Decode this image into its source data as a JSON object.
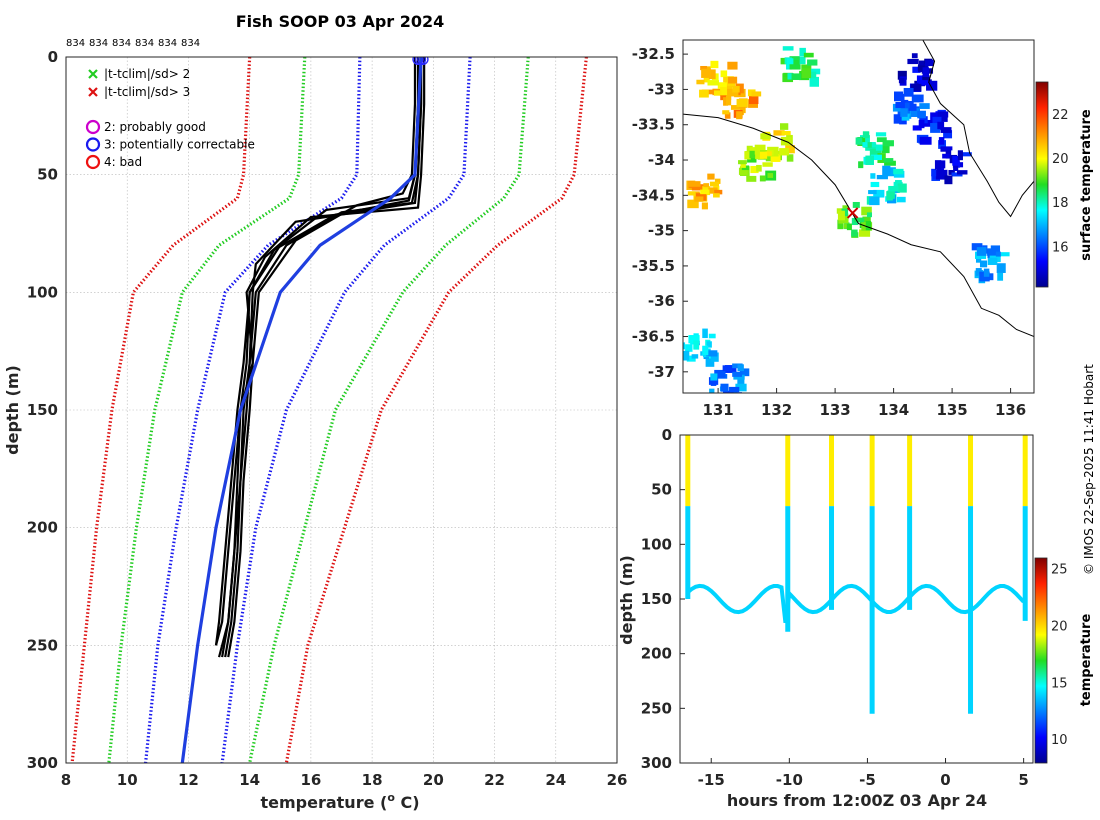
{
  "title": "Fish SOOP 03 Apr 2024",
  "copyright": "© IMOS 22-Sep-2025 11:41 Hobart",
  "colors": {
    "clim_2sd": "#22cc22",
    "clim_3sd": "#dd1111",
    "clim_1sd": "#1a1aee",
    "mean": "#1f3fe0",
    "casts": "#000000",
    "marker": "#cc00cc"
  },
  "chart_data": [
    {
      "id": "profile",
      "type": "line",
      "title": "Fish SOOP 03 Apr 2024",
      "xlabel": "temperature (",
      "xlabel_sup": "o",
      "xlabel_end": " C)",
      "ylabel": "depth (m)",
      "xlim": [
        8,
        26
      ],
      "ylim": [
        0,
        300
      ],
      "xticks": [
        8,
        10,
        12,
        14,
        16,
        18,
        20,
        22,
        24,
        26
      ],
      "yticks": [
        0,
        50,
        100,
        150,
        200,
        250,
        300
      ],
      "cast_ids": [
        "834",
        "834",
        "834",
        "834",
        "834",
        "834"
      ],
      "legend": [
        {
          "label": "|t-tclim|/sd> 2",
          "symbol": "x",
          "color": "#22cc22"
        },
        {
          "label": "|t-tclim|/sd> 3",
          "symbol": "x",
          "color": "#dd1111"
        },
        {
          "label": "2: probably good",
          "symbol": "o",
          "color": "#cc00cc"
        },
        {
          "label": "3: potentially correctable",
          "symbol": "o",
          "color": "#1a1aee"
        },
        {
          "label": "4: bad",
          "symbol": "o",
          "color": "#ee1111"
        }
      ],
      "climatology": {
        "depth": [
          0,
          50,
          60,
          80,
          100,
          150,
          200,
          250,
          300
        ],
        "mean": [
          19.6,
          19.4,
          18.6,
          16.3,
          15.0,
          13.7,
          12.9,
          12.3,
          11.8
        ],
        "plus1": [
          21.2,
          21.0,
          20.5,
          18.4,
          17.1,
          15.2,
          14.2,
          13.6,
          13.1
        ],
        "minus1": [
          17.6,
          17.5,
          17.0,
          14.6,
          13.2,
          12.3,
          11.6,
          11.0,
          10.6
        ],
        "plus2": [
          23.1,
          22.8,
          22.3,
          20.4,
          19.0,
          16.8,
          15.8,
          14.8,
          14.0
        ],
        "minus2": [
          15.8,
          15.6,
          15.3,
          13.0,
          11.8,
          10.9,
          10.3,
          9.8,
          9.4
        ],
        "plus3": [
          25.0,
          24.6,
          24.2,
          22.1,
          20.5,
          18.3,
          17.1,
          15.9,
          15.2
        ],
        "minus3": [
          14.0,
          13.8,
          13.6,
          11.5,
          10.2,
          9.5,
          9.0,
          8.6,
          8.2
        ]
      },
      "casts": [
        {
          "depth": [
            0,
            20,
            50,
            62,
            66,
            80,
            100,
            130,
            150,
            180,
            210,
            240,
            255
          ],
          "temp": [
            19.6,
            19.6,
            19.5,
            19.3,
            17.0,
            15.2,
            14.2,
            14.0,
            13.8,
            13.7,
            13.6,
            13.4,
            13.2
          ]
        },
        {
          "depth": [
            0,
            20,
            50,
            60,
            65,
            80,
            100,
            130,
            150,
            180,
            210,
            240,
            255
          ],
          "temp": [
            19.5,
            19.5,
            19.4,
            19.2,
            16.5,
            15.0,
            14.0,
            13.9,
            13.7,
            13.6,
            13.5,
            13.3,
            13.1
          ]
        },
        {
          "depth": [
            0,
            20,
            50,
            64,
            68,
            85,
            100,
            130,
            150,
            180,
            210,
            240,
            255
          ],
          "temp": [
            19.7,
            19.7,
            19.6,
            19.5,
            16.0,
            14.5,
            13.9,
            14.1,
            14.0,
            13.8,
            13.7,
            13.5,
            13.3
          ]
        },
        {
          "depth": [
            0,
            20,
            50,
            58,
            63,
            78,
            100,
            130,
            150,
            180,
            210,
            240,
            250
          ],
          "temp": [
            19.4,
            19.4,
            19.3,
            19.0,
            17.5,
            15.5,
            14.3,
            14.1,
            13.7,
            13.5,
            13.3,
            13.1,
            12.9
          ]
        },
        {
          "depth": [
            0,
            20,
            50,
            62,
            70,
            88,
            100,
            130,
            150,
            180,
            210,
            240,
            255
          ],
          "temp": [
            19.6,
            19.6,
            19.5,
            19.4,
            15.5,
            14.2,
            14.1,
            14.0,
            13.9,
            13.7,
            13.5,
            13.3,
            13.0
          ]
        },
        {
          "depth": [
            0,
            20,
            50,
            61,
            67,
            82,
            100,
            130,
            150,
            180,
            210,
            240,
            250
          ],
          "temp": [
            19.5,
            19.5,
            19.4,
            19.2,
            16.8,
            14.8,
            14.0,
            13.8,
            13.6,
            13.4,
            13.2,
            13.0,
            12.9
          ]
        }
      ]
    },
    {
      "id": "map",
      "type": "heatmap",
      "xlim": [
        130.4,
        136.4
      ],
      "ylim": [
        -37.3,
        -32.3
      ],
      "xticks": [
        131,
        132,
        133,
        134,
        135,
        136
      ],
      "yticks": [
        -32.5,
        -33,
        -33.5,
        -34,
        -34.5,
        -35,
        -35.5,
        -36,
        -36.5,
        -37
      ],
      "colorbar_label": "surface temperature",
      "clim": [
        14.2,
        23.5
      ],
      "cticks": [
        16,
        18,
        20,
        22
      ],
      "vessel_position": {
        "lon": 133.3,
        "lat": -34.75
      },
      "sst_patches": [
        {
          "lon": 130.9,
          "lat": -32.8,
          "val": 20.5
        },
        {
          "lon": 131.3,
          "lat": -33.1,
          "val": 21.0
        },
        {
          "lon": 130.7,
          "lat": -34.4,
          "val": 20.8
        },
        {
          "lon": 131.6,
          "lat": -34.0,
          "val": 19.5
        },
        {
          "lon": 131.9,
          "lat": -33.7,
          "val": 20.0
        },
        {
          "lon": 132.3,
          "lat": -32.6,
          "val": 18.5
        },
        {
          "lon": 133.6,
          "lat": -33.8,
          "val": 18.3
        },
        {
          "lon": 133.8,
          "lat": -34.3,
          "val": 17.5
        },
        {
          "lon": 134.3,
          "lat": -32.7,
          "val": 15.0
        },
        {
          "lon": 134.6,
          "lat": -33.5,
          "val": 15.5
        },
        {
          "lon": 134.9,
          "lat": -34.0,
          "val": 15.2
        },
        {
          "lon": 134.2,
          "lat": -33.2,
          "val": 16.5
        },
        {
          "lon": 135.6,
          "lat": -35.4,
          "val": 16.8
        },
        {
          "lon": 130.6,
          "lat": -36.6,
          "val": 17.2
        },
        {
          "lon": 131.1,
          "lat": -37.1,
          "val": 16.5
        },
        {
          "lon": 133.3,
          "lat": -34.8,
          "val": 19.0
        }
      ]
    },
    {
      "id": "timeseries",
      "type": "scatter",
      "xlabel": "hours from 12:00Z 03 Apr 24",
      "ylabel": "depth (m)",
      "xlim": [
        -17,
        5.6
      ],
      "ylim": [
        0,
        300
      ],
      "xticks": [
        -15,
        -10,
        -5,
        0,
        5
      ],
      "yticks": [
        0,
        50,
        100,
        150,
        200,
        250,
        300
      ],
      "colorbar_label": "temperature",
      "clim": [
        8,
        26
      ],
      "cticks": [
        10,
        15,
        20,
        25
      ],
      "casts": [
        {
          "hour": -16.5,
          "max_depth": 150
        },
        {
          "hour": -10.1,
          "max_depth": 180
        },
        {
          "hour": -7.3,
          "max_depth": 160
        },
        {
          "hour": -4.7,
          "max_depth": 255
        },
        {
          "hour": -2.3,
          "max_depth": 160
        },
        {
          "hour": 1.6,
          "max_depth": 255
        },
        {
          "hour": 5.1,
          "max_depth": 170
        }
      ],
      "surface_temp": 19.6,
      "deep_temp": 14.0
    }
  ]
}
